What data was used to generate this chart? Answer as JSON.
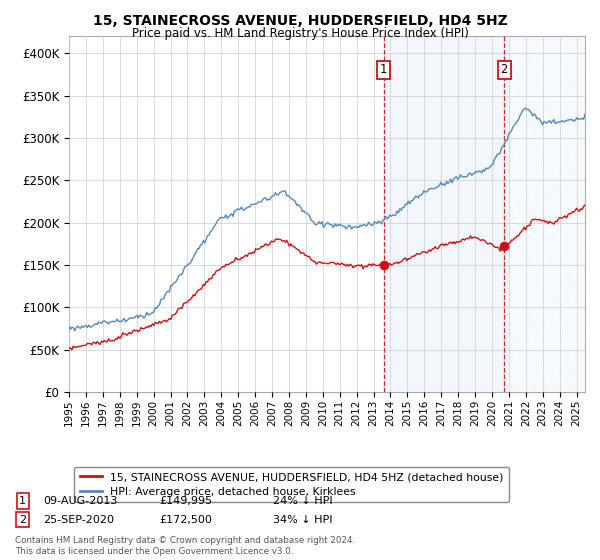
{
  "title": "15, STAINECROSS AVENUE, HUDDERSFIELD, HD4 5HZ",
  "subtitle": "Price paid vs. HM Land Registry's House Price Index (HPI)",
  "legend_line1": "15, STAINECROSS AVENUE, HUDDERSFIELD, HD4 5HZ (detached house)",
  "legend_line2": "HPI: Average price, detached house, Kirklees",
  "annotation1": {
    "label": "1",
    "date": "09-AUG-2013",
    "price": "£149,995",
    "pct": "24% ↓ HPI"
  },
  "annotation2": {
    "label": "2",
    "date": "25-SEP-2020",
    "price": "£172,500",
    "pct": "34% ↓ HPI"
  },
  "footer": "Contains HM Land Registry data © Crown copyright and database right 2024.\nThis data is licensed under the Open Government Licence v3.0.",
  "hpi_color": "#5588bb",
  "price_color": "#cc1111",
  "annotation_color": "#cc1111",
  "ylim": [
    0,
    420000
  ],
  "xlim_start": 1995.0,
  "xlim_end": 2025.5,
  "sale1_x": 2013.6,
  "sale1_y": 149995,
  "sale2_x": 2020.72,
  "sale2_y": 172500,
  "background_color": "#ffffff",
  "grid_color": "#cccccc",
  "shade_color": "#ddeeff",
  "hatch_color": "#ccddee"
}
